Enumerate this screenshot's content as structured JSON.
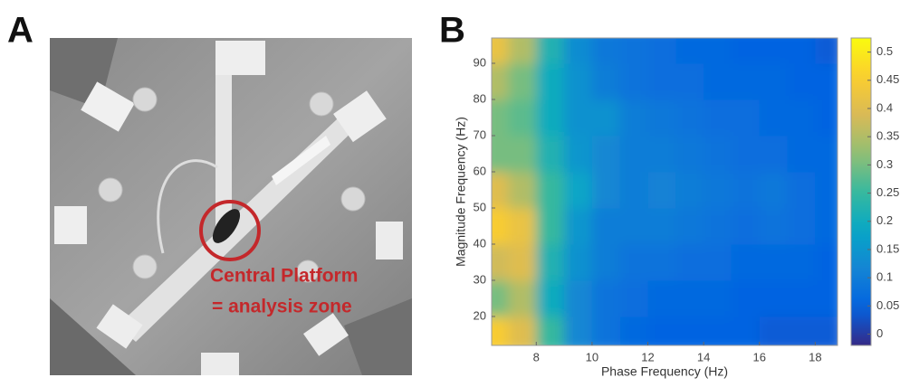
{
  "panels": {
    "a": {
      "label": "A",
      "annotation": [
        "Central Platform",
        "= analysis zone"
      ]
    }
  },
  "chart_data": {
    "type": "heatmap",
    "panel_label": "B",
    "x_label": "Phase Frequency (Hz)",
    "y_label": "Magnitude Frequency (Hz)",
    "x": [
      6.5,
      7.5,
      8.5,
      9.5,
      10.5,
      11.5,
      12.5,
      13.5,
      14.5,
      15.5,
      16.5,
      17.5,
      18.5
    ],
    "y": [
      15,
      25,
      35,
      45,
      55,
      65,
      75,
      85,
      95
    ],
    "z": [
      [
        0.45,
        0.4,
        0.25,
        0.12,
        0.08,
        0.06,
        0.05,
        0.05,
        0.05,
        0.05,
        0.04,
        0.04,
        0.04
      ],
      [
        0.3,
        0.35,
        0.2,
        0.12,
        0.08,
        0.07,
        0.06,
        0.06,
        0.06,
        0.05,
        0.05,
        0.05,
        0.05
      ],
      [
        0.38,
        0.4,
        0.22,
        0.14,
        0.1,
        0.08,
        0.08,
        0.07,
        0.07,
        0.06,
        0.06,
        0.06,
        0.05
      ],
      [
        0.45,
        0.42,
        0.25,
        0.15,
        0.1,
        0.1,
        0.1,
        0.09,
        0.08,
        0.07,
        0.08,
        0.07,
        0.06
      ],
      [
        0.4,
        0.35,
        0.25,
        0.18,
        0.12,
        0.1,
        0.11,
        0.1,
        0.09,
        0.08,
        0.09,
        0.07,
        0.06
      ],
      [
        0.3,
        0.3,
        0.22,
        0.15,
        0.12,
        0.1,
        0.1,
        0.09,
        0.08,
        0.07,
        0.07,
        0.06,
        0.06
      ],
      [
        0.3,
        0.28,
        0.2,
        0.14,
        0.14,
        0.1,
        0.09,
        0.08,
        0.07,
        0.07,
        0.06,
        0.06,
        0.05
      ],
      [
        0.35,
        0.3,
        0.2,
        0.14,
        0.1,
        0.08,
        0.07,
        0.07,
        0.06,
        0.06,
        0.06,
        0.05,
        0.05
      ],
      [
        0.42,
        0.35,
        0.22,
        0.13,
        0.09,
        0.08,
        0.07,
        0.06,
        0.06,
        0.05,
        0.05,
        0.05,
        0.04
      ]
    ],
    "xlim": [
      6.4,
      18.8
    ],
    "ylim": [
      12,
      97
    ],
    "xticks": [
      8,
      10,
      12,
      14,
      16,
      18
    ],
    "yticks": [
      20,
      30,
      40,
      50,
      60,
      70,
      80,
      90
    ],
    "colormap": "parula",
    "colorbar": {
      "lim": [
        -0.02,
        0.525
      ],
      "ticks": [
        0,
        0.05,
        0.1,
        0.15,
        0.2,
        0.25,
        0.3,
        0.35,
        0.4,
        0.45,
        0.5
      ]
    }
  }
}
